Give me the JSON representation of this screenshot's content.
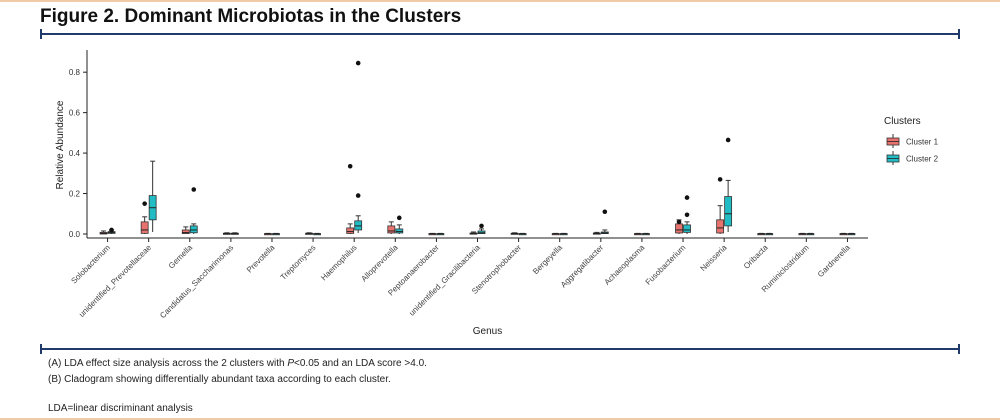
{
  "figure": {
    "title": "Figure 2. Dominant Microbiotas in the Clusters",
    "caption_a_prefix": "(A) LDA effect size analysis across the 2 clusters with ",
    "caption_a_p": "P",
    "caption_a_suffix": "<0.05 and an LDA score >4.0.",
    "caption_b": "(B) Cladogram showing differentially abundant taxa according to each cluster.",
    "footnote": "LDA=linear discriminant analysis"
  },
  "chart_data": {
    "type": "boxplot",
    "xlabel": "Genus",
    "ylabel": "Relative Abundance",
    "ylim": [
      0,
      0.88
    ],
    "yticks": [
      "0.0",
      "0.2",
      "0.4",
      "0.6",
      "0.8"
    ],
    "legend": {
      "title": "Clusters",
      "placement": "right"
    },
    "colors": {
      "cluster1": "#e8736e",
      "cluster2": "#21bcc4",
      "box_edge": "#333333"
    },
    "series": [
      {
        "name": "Cluster 1"
      },
      {
        "name": "Cluster 2"
      }
    ],
    "categories": [
      "Solobacterium",
      "unidentified_Prevotellaceae",
      "Gemella",
      "Candidatus_Saccharimonas",
      "Prevotella",
      "Treptomyces",
      "Haemophilus",
      "Alloprevotella",
      "Peptoanaerobacter",
      "unidentified_Gracilibacteria",
      "Stenotrophobacter",
      "Bergeyella",
      "Aggregatibacter",
      "Achaeoplasma",
      "Fusobacterium",
      "Neisseria",
      "Oribacta",
      "Ruminiclostridium",
      "Gardnerella"
    ],
    "boxes": [
      {
        "c1": [
          0,
          0,
          0.003,
          0.008,
          0.015
        ],
        "c2": [
          0,
          0.003,
          0.007,
          0.012,
          0.02
        ],
        "out1": [],
        "out2": [
          0.02
        ]
      },
      {
        "c1": [
          0,
          0.003,
          0.02,
          0.06,
          0.085
        ],
        "c2": [
          0.01,
          0.07,
          0.13,
          0.19,
          0.36
        ],
        "out1": [
          0.15
        ],
        "out2": []
      },
      {
        "c1": [
          0,
          0.002,
          0.007,
          0.02,
          0.035
        ],
        "c2": [
          0,
          0.006,
          0.02,
          0.04,
          0.05
        ],
        "out1": [],
        "out2": [
          0.22
        ]
      },
      {
        "c1": [
          0,
          0,
          0.002,
          0.004,
          0.006
        ],
        "c2": [
          0,
          0,
          0.002,
          0.004,
          0.006
        ],
        "out1": [],
        "out2": []
      },
      {
        "c1": [
          0,
          0,
          0.001,
          0.002,
          0.003
        ],
        "c2": [
          0,
          0,
          0.001,
          0.002,
          0.003
        ],
        "out1": [],
        "out2": []
      },
      {
        "c1": [
          0,
          0,
          0.002,
          0.004,
          0.006
        ],
        "c2": [
          0,
          0,
          0.001,
          0.002,
          0.003
        ],
        "out1": [],
        "out2": []
      },
      {
        "c1": [
          0,
          0.003,
          0.012,
          0.03,
          0.05
        ],
        "c2": [
          0.005,
          0.02,
          0.04,
          0.065,
          0.09
        ],
        "out1": [
          0.335
        ],
        "out2": [
          0.845,
          0.19
        ]
      },
      {
        "c1": [
          0,
          0.005,
          0.015,
          0.04,
          0.06
        ],
        "c2": [
          0,
          0.005,
          0.012,
          0.025,
          0.045
        ],
        "out1": [],
        "out2": [
          0.08
        ]
      },
      {
        "c1": [
          0,
          0,
          0.001,
          0.002,
          0.003
        ],
        "c2": [
          0,
          0,
          0.001,
          0.002,
          0.003
        ],
        "out1": [],
        "out2": []
      },
      {
        "c1": [
          0,
          0,
          0.002,
          0.005,
          0.01
        ],
        "c2": [
          0,
          0.002,
          0.006,
          0.015,
          0.025
        ],
        "out1": [],
        "out2": [
          0.04
        ]
      },
      {
        "c1": [
          0,
          0,
          0.002,
          0.004,
          0.006
        ],
        "c2": [
          0,
          0,
          0.001,
          0.002,
          0.003
        ],
        "out1": [],
        "out2": []
      },
      {
        "c1": [
          0,
          0,
          0.001,
          0.002,
          0.003
        ],
        "c2": [
          0,
          0,
          0.001,
          0.002,
          0.003
        ],
        "out1": [],
        "out2": []
      },
      {
        "c1": [
          0,
          0,
          0.002,
          0.005,
          0.008
        ],
        "c2": [
          0,
          0.002,
          0.005,
          0.01,
          0.02
        ],
        "out1": [],
        "out2": [
          0.11
        ]
      },
      {
        "c1": [
          0,
          0,
          0.001,
          0.002,
          0.003
        ],
        "c2": [
          0,
          0,
          0.001,
          0.002,
          0.003
        ],
        "out1": [],
        "out2": []
      },
      {
        "c1": [
          0,
          0.005,
          0.02,
          0.05,
          0.07
        ],
        "c2": [
          0,
          0.008,
          0.02,
          0.045,
          0.06
        ],
        "out1": [
          0.06
        ],
        "out2": [
          0.18,
          0.095
        ]
      },
      {
        "c1": [
          0,
          0.005,
          0.03,
          0.07,
          0.14
        ],
        "c2": [
          0.01,
          0.04,
          0.1,
          0.185,
          0.265
        ],
        "out1": [
          0.27
        ],
        "out2": [
          0.465
        ]
      },
      {
        "c1": [
          0,
          0,
          0.001,
          0.002,
          0.003
        ],
        "c2": [
          0,
          0,
          0.001,
          0.002,
          0.003
        ],
        "out1": [],
        "out2": []
      },
      {
        "c1": [
          0,
          0,
          0.001,
          0.002,
          0.003
        ],
        "c2": [
          0,
          0,
          0.001,
          0.002,
          0.003
        ],
        "out1": [],
        "out2": []
      },
      {
        "c1": [
          0,
          0,
          0.001,
          0.002,
          0.003
        ],
        "c2": [
          0,
          0,
          0.001,
          0.002,
          0.003
        ],
        "out1": [],
        "out2": []
      }
    ]
  }
}
